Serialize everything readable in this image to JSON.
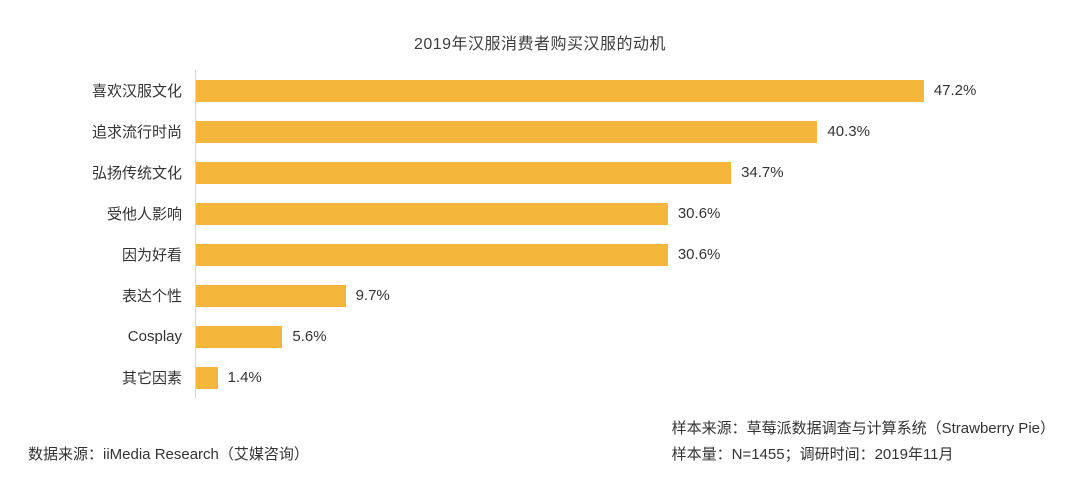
{
  "chart_data": {
    "type": "bar",
    "orientation": "horizontal",
    "title": "2019年汉服消费者购买汉服的动机",
    "categories": [
      "喜欢汉服文化",
      "追求流行时尚",
      "弘扬传统文化",
      "受他人影响",
      "因为好看",
      "表达个性",
      "Cosplay",
      "其它因素"
    ],
    "values": [
      47.2,
      40.3,
      34.7,
      30.6,
      30.6,
      9.7,
      5.6,
      1.4
    ],
    "value_labels": [
      "47.2%",
      "40.3%",
      "34.7%",
      "30.6%",
      "30.6%",
      "9.7%",
      "5.6%",
      "1.4%"
    ],
    "xlabel": "",
    "ylabel": "",
    "xlim": [
      0,
      50
    ],
    "grid": false,
    "legend": false,
    "bar_color": "#f5b63c",
    "axis_line_color": "#d9d9d9"
  },
  "footer": {
    "left": "数据来源：iiMedia Research（艾媒咨询）",
    "right_line1": "样本来源：草莓派数据调查与计算系统（Strawberry Pie）",
    "right_line2": "样本量：N=1455；调研时间：2019年11月"
  }
}
